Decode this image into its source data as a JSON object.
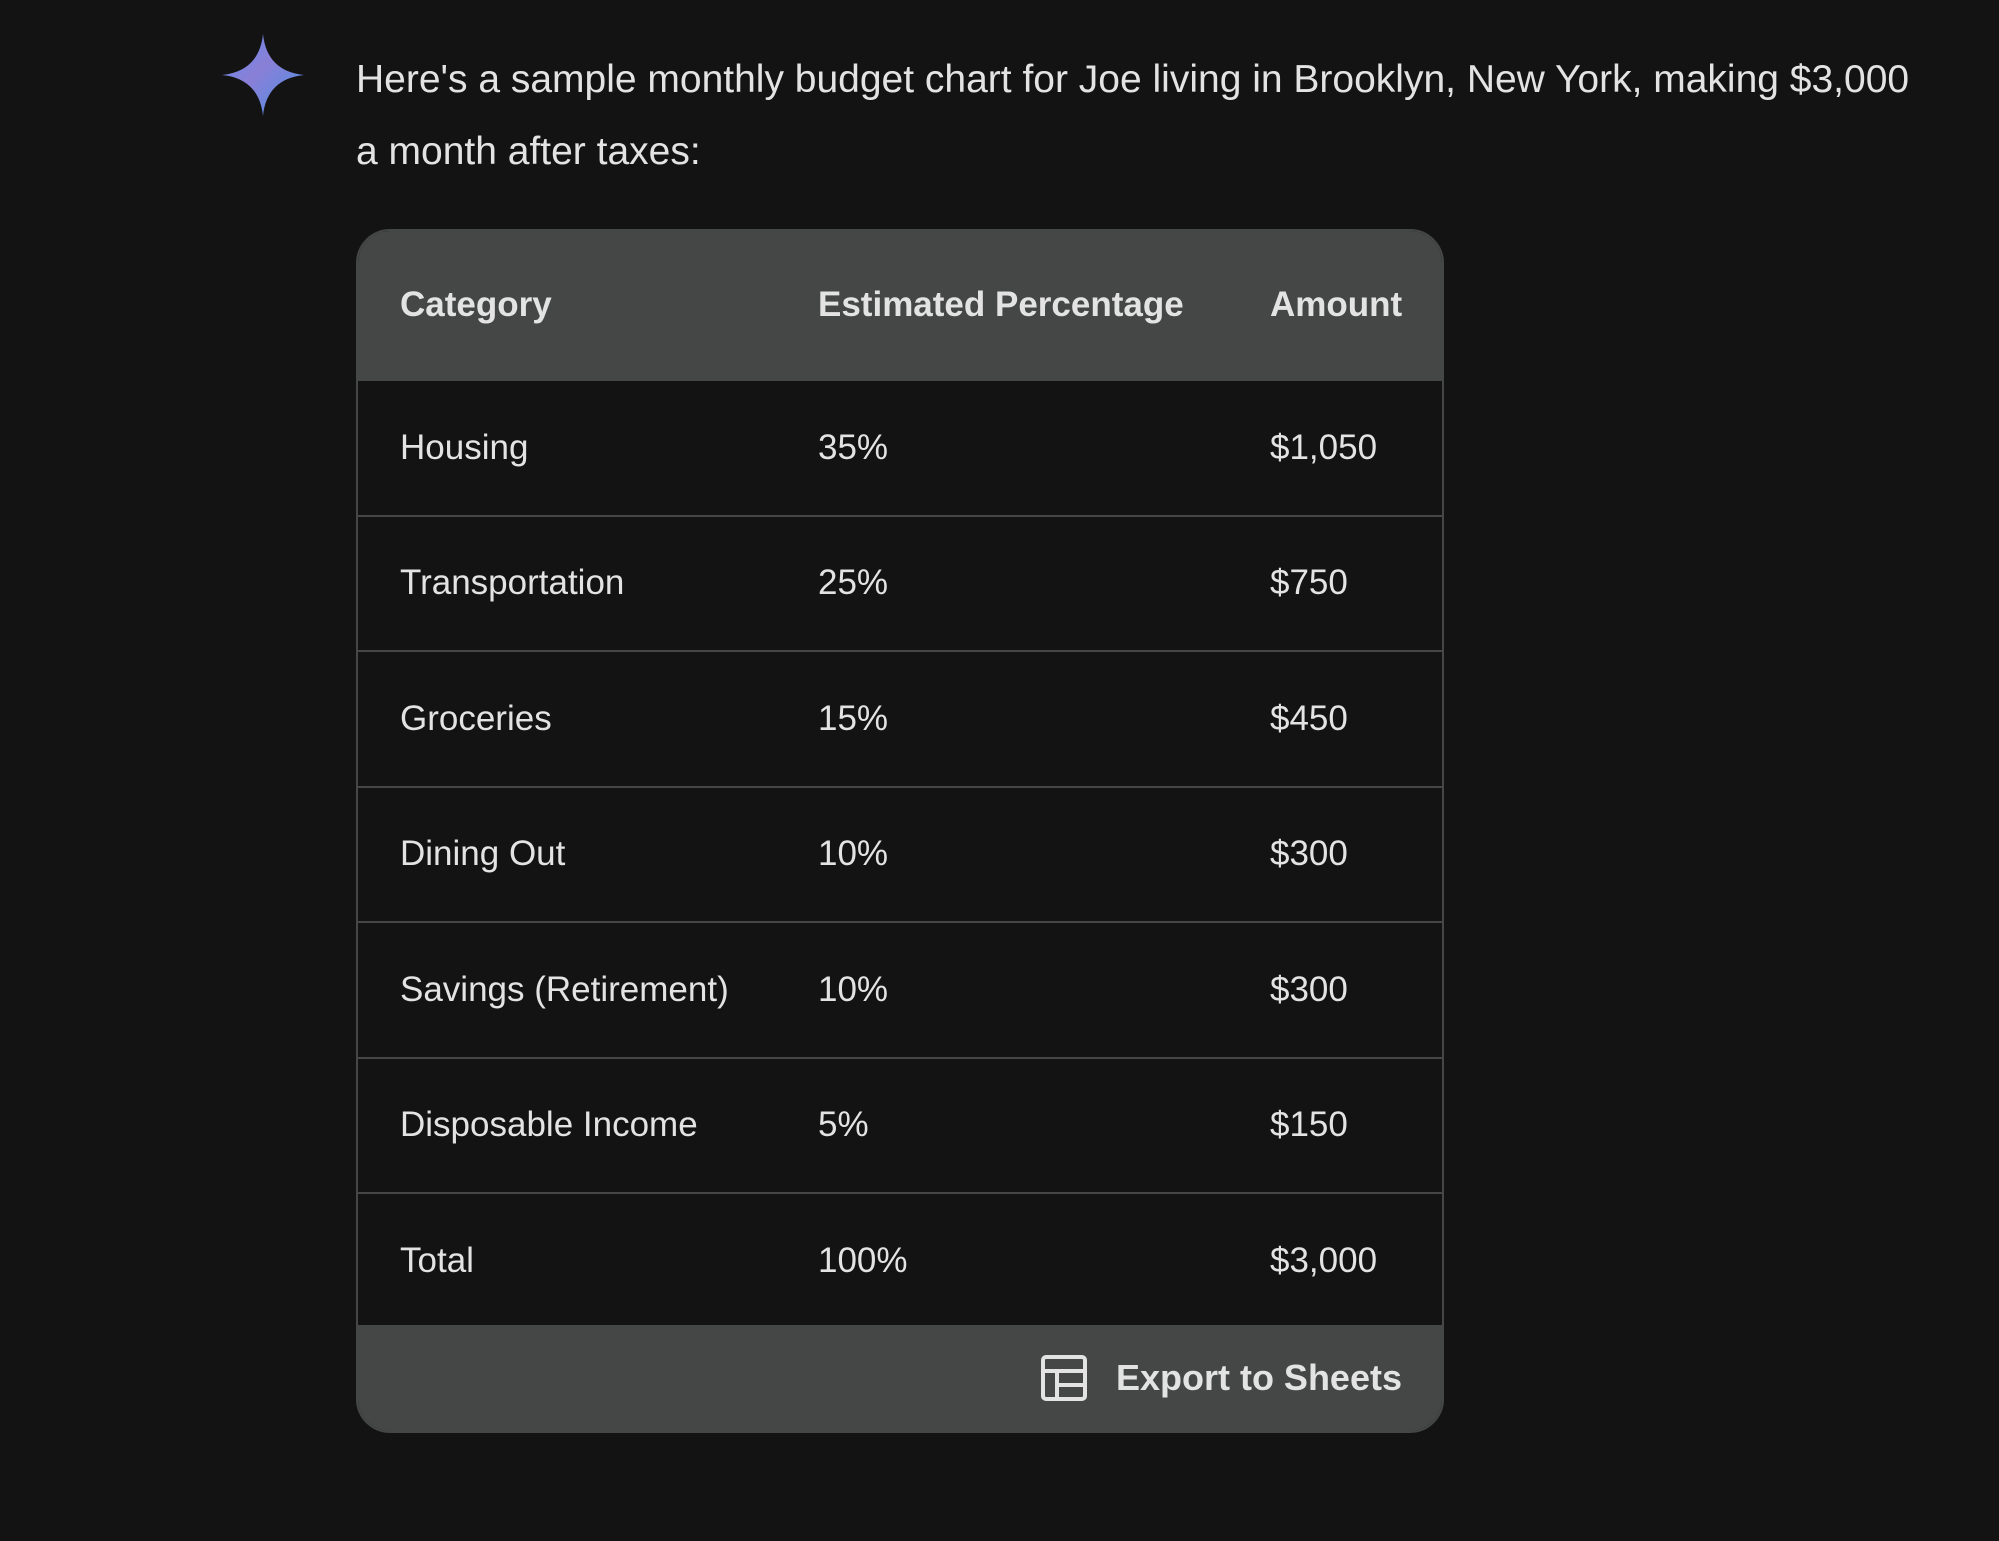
{
  "message": {
    "intro_text": "Here's a sample monthly budget chart for Joe living in Brooklyn, New York, making $3,000 a month after taxes:"
  },
  "table": {
    "headers": [
      "Category",
      "Estimated Percentage",
      "Amount"
    ],
    "rows": [
      [
        "Housing",
        "35%",
        "$1,050"
      ],
      [
        "Transportation",
        "25%",
        "$750"
      ],
      [
        "Groceries",
        "15%",
        "$450"
      ],
      [
        "Dining Out",
        "10%",
        "$300"
      ],
      [
        "Savings (Retirement)",
        "10%",
        "$300"
      ],
      [
        "Disposable Income",
        "5%",
        "$150"
      ],
      [
        "Total",
        "100%",
        "$3,000"
      ]
    ]
  },
  "footer": {
    "export_label": "Export to Sheets",
    "export_icon": "sheets-table-icon"
  },
  "colors": {
    "background": "#131314",
    "header_bg": "#444746",
    "text": "#e3e3e3",
    "sparkle_start": "#9168c0",
    "sparkle_end": "#4f86f7"
  }
}
